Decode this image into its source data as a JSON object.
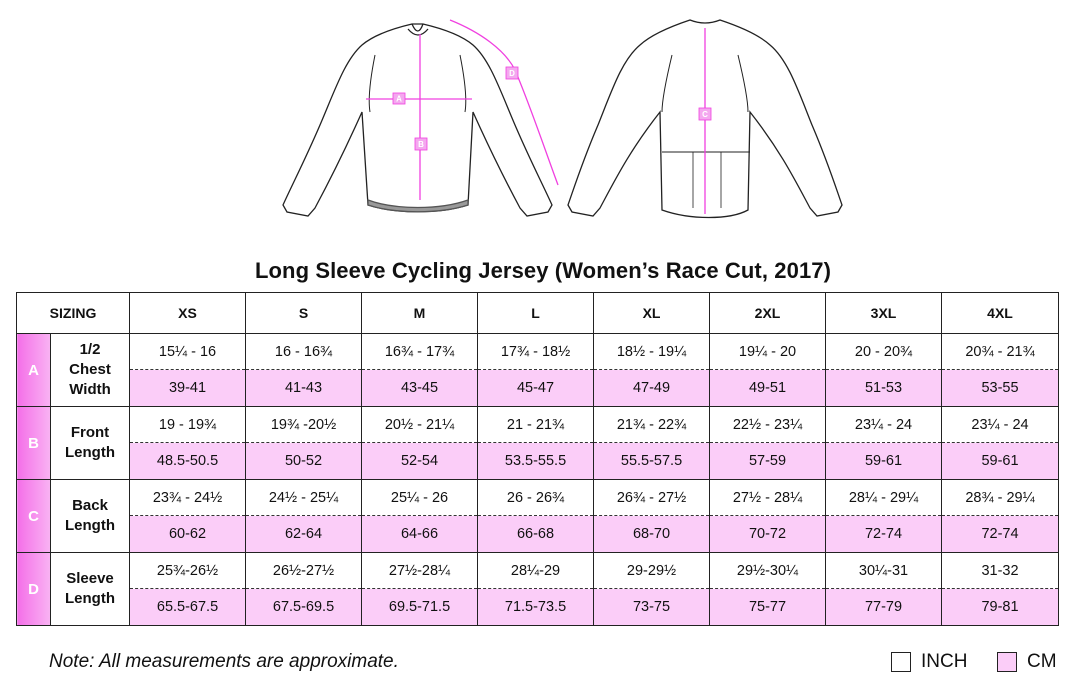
{
  "title": "Long Sleeve Cycling Jersey (Women’s Race Cut, 2017)",
  "diagram_labels": {
    "a": "A",
    "b": "B",
    "c": "C",
    "d": "D"
  },
  "table": {
    "sizing_header": "SIZING",
    "sizes": [
      "XS",
      "S",
      "M",
      "L",
      "XL",
      "2XL",
      "3XL",
      "4XL"
    ],
    "rows": [
      {
        "letter": "A",
        "label": [
          "1/2",
          "Chest",
          "Width"
        ],
        "inch": [
          "15¼ - 16",
          "16 - 16¾",
          "16¾ - 17¾",
          "17¾ - 18½",
          "18½ - 19¼",
          "19¼ - 20",
          "20 - 20¾",
          "20¾ - 21¾"
        ],
        "cm": [
          "39-41",
          "41-43",
          "43-45",
          "45-47",
          "47-49",
          "49-51",
          "51-53",
          "53-55"
        ]
      },
      {
        "letter": "B",
        "label": [
          "Front",
          "Length"
        ],
        "inch": [
          "19 - 19¾",
          "19¾ -20½",
          "20½ - 21¼",
          "21 - 21¾",
          "21¾ - 22¾",
          "22½ - 23¼",
          "23¼ - 24",
          "23¼ - 24"
        ],
        "cm": [
          "48.5-50.5",
          "50-52",
          "52-54",
          "53.5-55.5",
          "55.5-57.5",
          "57-59",
          "59-61",
          "59-61"
        ]
      },
      {
        "letter": "C",
        "label": [
          "Back",
          "Length"
        ],
        "inch": [
          "23¾ - 24½",
          "24½ - 25¼",
          "25¼ - 26",
          "26 - 26¾",
          "26¾ - 27½",
          "27½ - 28¼",
          "28¼ - 29¼",
          "28¾ - 29¼"
        ],
        "cm": [
          "60-62",
          "62-64",
          "64-66",
          "66-68",
          "68-70",
          "70-72",
          "72-74",
          "72-74"
        ]
      },
      {
        "letter": "D",
        "label": [
          "Sleeve",
          "Length"
        ],
        "inch": [
          "25¾-26½",
          "26½-27½",
          "27½-28¼",
          "28¼-29",
          "29-29½",
          "29½-30¼",
          "30¼-31",
          "31-32"
        ],
        "cm": [
          "65.5-67.5",
          "67.5-69.5",
          "69.5-71.5",
          "71.5-73.5",
          "73-75",
          "75-77",
          "77-79",
          "79-81"
        ]
      }
    ]
  },
  "note": "Note: All measurements are approximate.",
  "legend": {
    "inch_label": "INCH",
    "cm_label": "CM"
  },
  "colors": {
    "accent_pink": "#f46fe8",
    "cm_row_bg": "#fbcdf8",
    "measure_line": "#f040e0"
  }
}
